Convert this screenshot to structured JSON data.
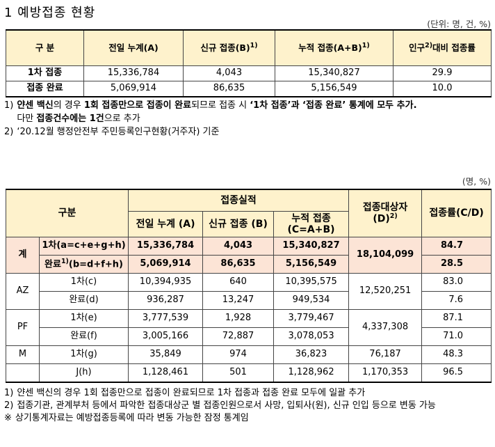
{
  "title": "1 예방접종 현황",
  "table1": {
    "unit": "(단위: 명, 건, %)",
    "header": [
      {
        "text": "구 분"
      },
      {
        "text": "전일  누계(A)"
      },
      {
        "text": "신규  접종(B)",
        "sup": "1)"
      },
      {
        "text": "누적  접종(A+B)",
        "sup": "1)"
      },
      {
        "text": "인구",
        "sup": "2)",
        "after": "대비 접종률"
      }
    ],
    "rows": [
      [
        "1차 접종",
        "15,336,784",
        "4,043",
        "15,340,827",
        "29.9"
      ],
      [
        "접종 완료",
        "5,069,914",
        "86,635",
        "5,156,549",
        "10.0"
      ]
    ]
  },
  "notes1": [
    {
      "label": "1)",
      "lines": [
        [
          {
            "text": "얀센 백신",
            "bold": true
          },
          {
            "text": "의 경우 "
          },
          {
            "text": "1회 접종만으로 접종이 완료",
            "bold": true
          },
          {
            "text": "되므로 접종 시 "
          },
          {
            "text": "‘1차 접종’과 ‘접종 완료’ 통계에 모두 추가.",
            "bold": true
          }
        ],
        [
          {
            "text": "다만 "
          },
          {
            "text": "접종건수에는 1건",
            "bold": true
          },
          {
            "text": "으로 추가"
          }
        ]
      ]
    },
    {
      "label": "2)",
      "lines": [
        [
          {
            "text": "‘20.12월 행정안전부 주민등록인구현황(거주자) 기준"
          }
        ]
      ]
    }
  ],
  "table2": {
    "unit": "(명, %)",
    "header": {
      "group": "구분",
      "results": "접종실적",
      "cols": [
        "전일 누계 (A)",
        "신규 접종 (B)",
        "누적 접종\n(C=A+B)"
      ],
      "target": {
        "text": "접종대상자\n(D)",
        "sup": "2)"
      },
      "rate": "접종률(C/D)"
    },
    "groups": [
      {
        "name": "계",
        "emphasis": true,
        "target": "18,104,099",
        "rows": [
          {
            "label": "1차(a=c+e+g+h)",
            "values": [
              "15,336,784",
              "4,043",
              "15,340,827"
            ],
            "rate": "84.7"
          },
          {
            "label": "완료",
            "sup": "1)",
            "after": "(b=d+f+h)",
            "values": [
              "5,069,914",
              "86,635",
              "5,156,549"
            ],
            "rate": "28.5"
          }
        ]
      },
      {
        "name": "AZ",
        "target": "12,520,251",
        "rows": [
          {
            "label": "1차(c)",
            "values": [
              "10,394,935",
              "640",
              "10,395,575"
            ],
            "rate": "83.0"
          },
          {
            "label": "완료(d)",
            "values": [
              "936,287",
              "13,247",
              "949,534"
            ],
            "rate": "7.6"
          }
        ]
      },
      {
        "name": "PF",
        "target": "4,337,308",
        "rows": [
          {
            "label": "1차(e)",
            "values": [
              "3,777,539",
              "1,928",
              "3,779,467"
            ],
            "rate": "87.1"
          },
          {
            "label": "완료(f)",
            "values": [
              "3,005,166",
              "72,887",
              "3,078,053"
            ],
            "rate": "71.0"
          }
        ]
      },
      {
        "name": "M",
        "target": "76,187",
        "rows": [
          {
            "label": "1차(g)",
            "values": [
              "35,849",
              "974",
              "36,823"
            ],
            "rate": "48.3"
          }
        ]
      },
      {
        "target": "1,170,353",
        "rows": [
          {
            "label": "J(h)",
            "values": [
              "1,128,461",
              "501",
              "1,128,962"
            ],
            "rate": "96.5"
          }
        ]
      }
    ]
  },
  "notes2": [
    {
      "label": "1)",
      "text": "얀센 백신의 경우 1회 접종만으로 접종이 완료되므로 1차 접종과 접종 완료 모두에 일괄 추가"
    },
    {
      "label": "2)",
      "text": "접종기관, 관계부처 등에서 파악한 접종대상군 별 접종인원으로서 사망, 입퇴사(원), 신규 인입 등으로 변동 가능"
    },
    {
      "label": "※",
      "text": "상기통계자료는 예방접종등록에 따라 변동 가능한 잠정 통계임"
    }
  ]
}
